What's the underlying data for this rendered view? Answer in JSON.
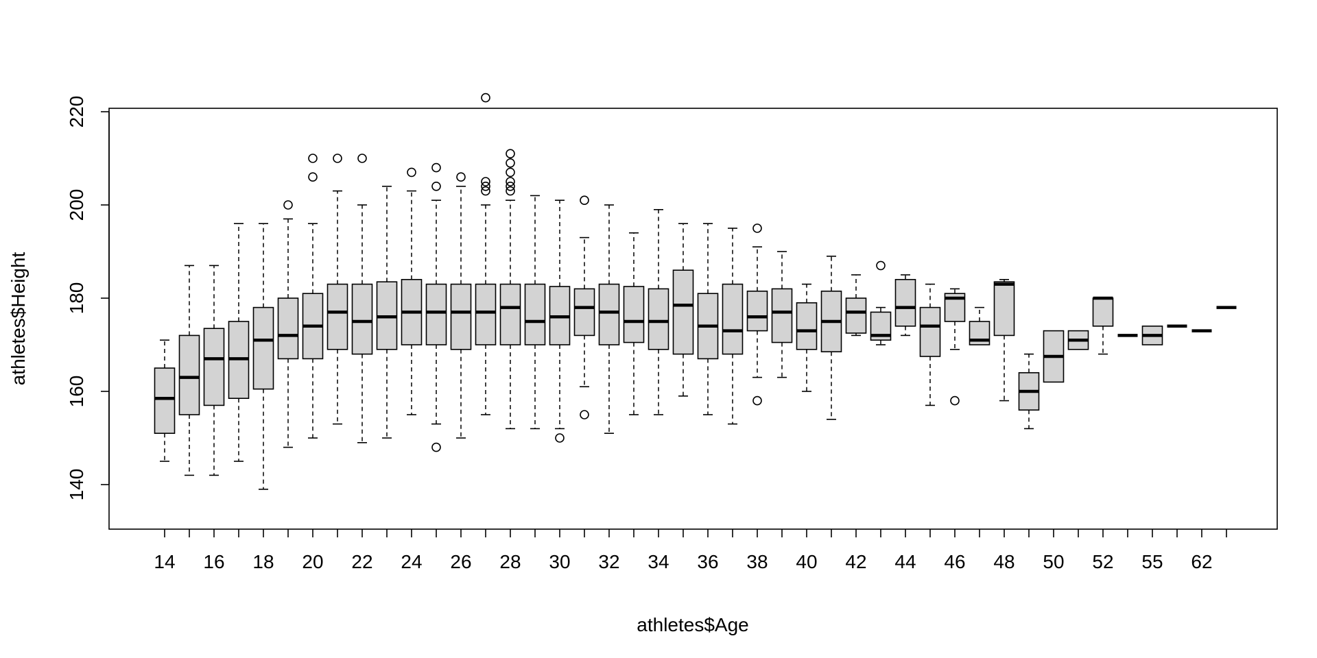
{
  "chart_data": {
    "type": "boxplot",
    "title": "",
    "xlabel": "athletes$Age",
    "ylabel": "athletes$Height",
    "ylim": [
      135,
      227
    ],
    "y_ticks": [
      140,
      160,
      180,
      200,
      220
    ],
    "x_tick_labels_shown": [
      "14",
      "16",
      "18",
      "20",
      "22",
      "24",
      "26",
      "28",
      "30",
      "32",
      "34",
      "36",
      "38",
      "40",
      "42",
      "44",
      "46",
      "48",
      "50",
      "52",
      "55",
      "62"
    ],
    "grid": false,
    "legend": "none",
    "colors": {
      "box_fill": "#d3d3d3",
      "stroke": "#000000",
      "background": "#ffffff"
    },
    "boxes": [
      {
        "label": "14",
        "min": 145,
        "q1": 151,
        "median": 158.5,
        "q3": 165,
        "max": 171,
        "outliers": []
      },
      {
        "label": "15",
        "min": 142,
        "q1": 155,
        "median": 163,
        "q3": 172,
        "max": 187,
        "outliers": []
      },
      {
        "label": "16",
        "min": 142,
        "q1": 157,
        "median": 167,
        "q3": 173.5,
        "max": 187,
        "outliers": []
      },
      {
        "label": "17",
        "min": 145,
        "q1": 158.5,
        "median": 167,
        "q3": 175,
        "max": 196,
        "outliers": []
      },
      {
        "label": "18",
        "min": 139,
        "q1": 160.5,
        "median": 171,
        "q3": 178,
        "max": 196,
        "outliers": []
      },
      {
        "label": "19",
        "min": 148,
        "q1": 167,
        "median": 172,
        "q3": 180,
        "max": 197,
        "outliers": [
          200
        ]
      },
      {
        "label": "20",
        "min": 150,
        "q1": 167,
        "median": 174,
        "q3": 181,
        "max": 196,
        "outliers": [
          206,
          210
        ]
      },
      {
        "label": "21",
        "min": 153,
        "q1": 169,
        "median": 177,
        "q3": 183,
        "max": 203,
        "outliers": [
          210
        ]
      },
      {
        "label": "22",
        "min": 149,
        "q1": 168,
        "median": 175,
        "q3": 183,
        "max": 200,
        "outliers": [
          210
        ]
      },
      {
        "label": "23",
        "min": 150,
        "q1": 169,
        "median": 176,
        "q3": 183.5,
        "max": 204,
        "outliers": []
      },
      {
        "label": "24",
        "min": 155,
        "q1": 170,
        "median": 177,
        "q3": 184,
        "max": 203,
        "outliers": [
          207
        ]
      },
      {
        "label": "25",
        "min": 153,
        "q1": 170,
        "median": 177,
        "q3": 183,
        "max": 201,
        "outliers": [
          148,
          204,
          208
        ]
      },
      {
        "label": "26",
        "min": 150,
        "q1": 169,
        "median": 177,
        "q3": 183,
        "max": 204,
        "outliers": [
          206
        ]
      },
      {
        "label": "27",
        "min": 155,
        "q1": 170,
        "median": 177,
        "q3": 183,
        "max": 200,
        "outliers": [
          203,
          204,
          205,
          223
        ]
      },
      {
        "label": "28",
        "min": 152,
        "q1": 170,
        "median": 178,
        "q3": 183,
        "max": 201,
        "outliers": [
          203,
          204,
          205,
          207,
          209,
          211
        ]
      },
      {
        "label": "29",
        "min": 152,
        "q1": 170,
        "median": 175,
        "q3": 183,
        "max": 202,
        "outliers": []
      },
      {
        "label": "30",
        "min": 152,
        "q1": 170,
        "median": 176,
        "q3": 182.5,
        "max": 201,
        "outliers": [
          150
        ]
      },
      {
        "label": "31",
        "min": 161,
        "q1": 172,
        "median": 178,
        "q3": 182,
        "max": 193,
        "outliers": [
          155,
          201
        ]
      },
      {
        "label": "32",
        "min": 151,
        "q1": 170,
        "median": 177,
        "q3": 183,
        "max": 200,
        "outliers": []
      },
      {
        "label": "33",
        "min": 155,
        "q1": 170.5,
        "median": 175,
        "q3": 182.5,
        "max": 194,
        "outliers": []
      },
      {
        "label": "34",
        "min": 155,
        "q1": 169,
        "median": 175,
        "q3": 182,
        "max": 199,
        "outliers": []
      },
      {
        "label": "35",
        "min": 159,
        "q1": 168,
        "median": 178.5,
        "q3": 186,
        "max": 196,
        "outliers": []
      },
      {
        "label": "36",
        "min": 155,
        "q1": 167,
        "median": 174,
        "q3": 181,
        "max": 196,
        "outliers": []
      },
      {
        "label": "37",
        "min": 153,
        "q1": 168,
        "median": 173,
        "q3": 183,
        "max": 195,
        "outliers": []
      },
      {
        "label": "38",
        "min": 163,
        "q1": 173,
        "median": 176,
        "q3": 181.5,
        "max": 191,
        "outliers": [
          158,
          195
        ]
      },
      {
        "label": "39",
        "min": 163,
        "q1": 170.5,
        "median": 177,
        "q3": 182,
        "max": 190,
        "outliers": []
      },
      {
        "label": "40",
        "min": 160,
        "q1": 169,
        "median": 173,
        "q3": 179,
        "max": 183,
        "outliers": []
      },
      {
        "label": "41",
        "min": 154,
        "q1": 168.5,
        "median": 175,
        "q3": 181.5,
        "max": 189,
        "outliers": []
      },
      {
        "label": "42",
        "min": 172,
        "q1": 172.5,
        "median": 177,
        "q3": 180,
        "max": 185,
        "outliers": []
      },
      {
        "label": "43",
        "min": 170,
        "q1": 171,
        "median": 172,
        "q3": 177,
        "max": 178,
        "outliers": [
          187
        ]
      },
      {
        "label": "44",
        "min": 172,
        "q1": 174,
        "median": 178,
        "q3": 184,
        "max": 185,
        "outliers": []
      },
      {
        "label": "45",
        "min": 157,
        "q1": 167.5,
        "median": 174,
        "q3": 178,
        "max": 183,
        "outliers": []
      },
      {
        "label": "46",
        "min": 169,
        "q1": 175,
        "median": 180,
        "q3": 181,
        "max": 182,
        "outliers": [
          158
        ]
      },
      {
        "label": "47",
        "min": 170,
        "q1": 170,
        "median": 171,
        "q3": 175,
        "max": 178,
        "outliers": []
      },
      {
        "label": "48",
        "min": 158,
        "q1": 172,
        "median": 183,
        "q3": 183.5,
        "max": 184,
        "outliers": []
      },
      {
        "label": "49",
        "min": 152,
        "q1": 156,
        "median": 160,
        "q3": 164,
        "max": 168,
        "outliers": []
      },
      {
        "label": "50",
        "min": 162,
        "q1": 162,
        "median": 167.5,
        "q3": 173,
        "max": 173,
        "outliers": []
      },
      {
        "label": "51",
        "min": 169,
        "q1": 169,
        "median": 171,
        "q3": 173,
        "max": 173,
        "outliers": []
      },
      {
        "label": "52",
        "min": 168,
        "q1": 174,
        "median": 180,
        "q3": 180,
        "max": 180,
        "outliers": []
      },
      {
        "label": "53",
        "min": 172,
        "q1": 172,
        "median": 172,
        "q3": 172,
        "max": 172,
        "outliers": []
      },
      {
        "label": "55",
        "min": 170,
        "q1": 170,
        "median": 172,
        "q3": 174,
        "max": 174,
        "outliers": []
      },
      {
        "label": "57",
        "min": 174,
        "q1": 174,
        "median": 174,
        "q3": 174,
        "max": 174,
        "outliers": []
      },
      {
        "label": "62",
        "min": 173,
        "q1": 173,
        "median": 173,
        "q3": 173,
        "max": 173,
        "outliers": []
      },
      {
        "label": "63",
        "min": 178,
        "q1": 178,
        "median": 178,
        "q3": 178,
        "max": 178,
        "outliers": []
      }
    ]
  }
}
